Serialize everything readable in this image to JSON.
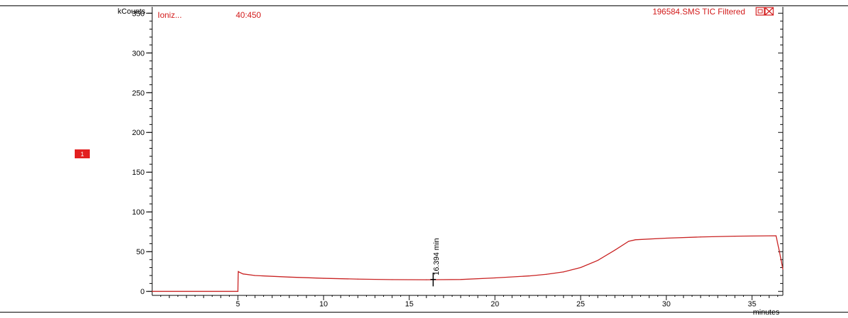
{
  "header": {
    "ion_label": "Ioniz...",
    "mass_range": "40:450",
    "trace_title": "196584.SMS TIC Filtered",
    "window_icons": [
      "restore-icon",
      "close-icon"
    ]
  },
  "marker": {
    "label": "1",
    "color": "#e21f1f"
  },
  "colors": {
    "trace": "#c81e1e",
    "axis": "#000000",
    "header_text": "#d21a1a"
  },
  "chart_data": {
    "type": "line",
    "title": "196584.SMS TIC Filtered",
    "xlabel": "minutes",
    "ylabel": "kCounts",
    "xlim": [
      0,
      36.8
    ],
    "ylim": [
      -5,
      358
    ],
    "xticks": [
      5,
      10,
      15,
      20,
      25,
      30,
      35
    ],
    "xtick_labels": [
      "5",
      "10",
      "15",
      "20",
      "25",
      "30",
      "35"
    ],
    "yticks": [
      0,
      50,
      100,
      150,
      200,
      250,
      300,
      350
    ],
    "ytick_labels": [
      "0",
      "50",
      "100",
      "150",
      "200",
      "250",
      "300",
      "350"
    ],
    "grid": false,
    "series": [
      {
        "name": "",
        "x": [
          0,
          5.0,
          5.02,
          5.1,
          5.3,
          6,
          8,
          10,
          12,
          14,
          16,
          18,
          20,
          22,
          23,
          24,
          25,
          26,
          27,
          27.8,
          28.2,
          30,
          32,
          34,
          36.4,
          36.6,
          36.8
        ],
        "y": [
          0,
          0,
          25,
          24,
          22,
          20,
          18,
          16.5,
          15.5,
          14.8,
          14.6,
          15,
          17,
          19.5,
          21.5,
          24.5,
          30,
          39,
          52,
          63,
          65,
          67,
          68.5,
          69.5,
          70,
          50,
          28
        ]
      }
    ],
    "annotations": [
      {
        "text": "16.394 min",
        "x": 16.394,
        "y": 15
      }
    ]
  }
}
